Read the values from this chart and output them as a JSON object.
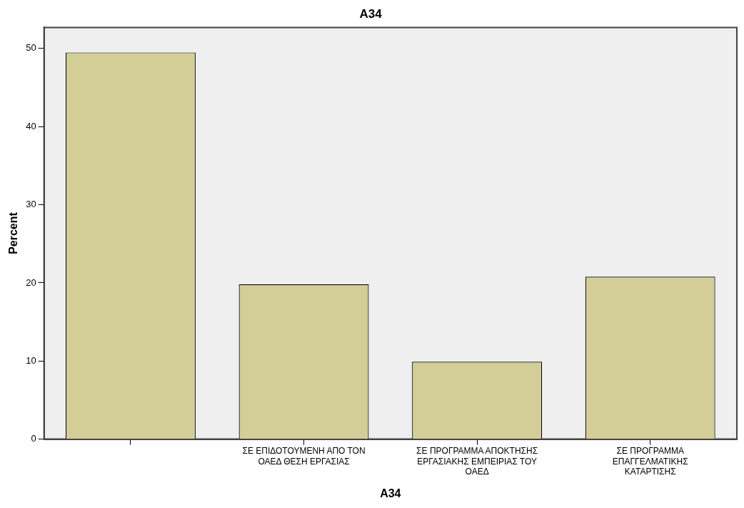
{
  "chart_data": {
    "type": "bar",
    "title": "A34",
    "xlabel": "A34",
    "ylabel": "Percent",
    "categories": [
      null,
      "ΣΕ ΕΠΙΔΟΤΟΥΜΕΝΗ ΑΠΟ ΤΟΝ ΟΑΕΔ ΘΕΣΗ ΕΡΓΑΣΙΑΣ",
      "ΣΕ ΠΡΟΓΡΑΜΜΑ ΑΠΟΚΤΗΣΗΣ ΕΡΓΑΣΙΑΚΗΣ ΕΜΠΕΙΡΙΑΣ ΤΟΥ ΟΑΕΔ",
      "ΣΕ ΠΡΟΓΡΑΜΜΑ ΕΠΑΓΓΕΛΜΑΤΙΚΗΣ ΚΑΤΑΡΤΙΣΗΣ"
    ],
    "values": [
      49.5,
      19.8,
      9.9,
      20.8
    ],
    "color": "#d3ce97",
    "ylim": [
      0,
      52.7
    ],
    "yticks": [
      0,
      10,
      20,
      30,
      40,
      50
    ],
    "grid": false,
    "legend": false
  }
}
